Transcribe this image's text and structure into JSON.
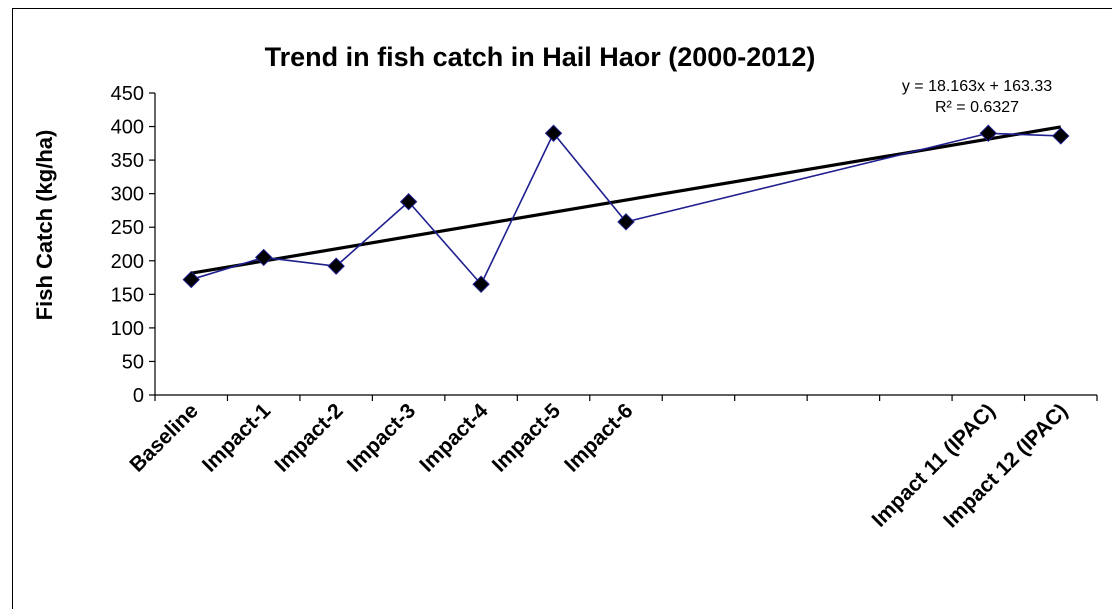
{
  "chart_data": {
    "type": "line",
    "title": "Trend in fish catch in Hail Haor (2000-2012)",
    "xlabel": "",
    "ylabel": "Fish Catch (kg/ha)",
    "ylim": [
      0,
      450
    ],
    "yticks": [
      0,
      50,
      100,
      150,
      200,
      250,
      300,
      350,
      400,
      450
    ],
    "categories": [
      "Baseline",
      "Impact-1",
      "Impact-2",
      "Impact-3",
      "Impact-4",
      "Impact-5",
      "Impact-6",
      "",
      "",
      "",
      "",
      "Impact 11 (IPAC)",
      "Impact 12 (IPAC)"
    ],
    "series": [
      {
        "values": [
          172,
          205,
          192,
          288,
          165,
          390,
          258,
          null,
          null,
          null,
          null,
          390,
          386
        ],
        "color": "#1F1F8F",
        "marker": "diamond",
        "marker_color": "#000000"
      }
    ],
    "trendline": {
      "slope": 18.163,
      "intercept": 163.33,
      "color": "#000000",
      "equation_text": "y = 18.163x + 163.33",
      "r2_text": "R² = 0.6327"
    },
    "grid": false,
    "legend": "none"
  }
}
